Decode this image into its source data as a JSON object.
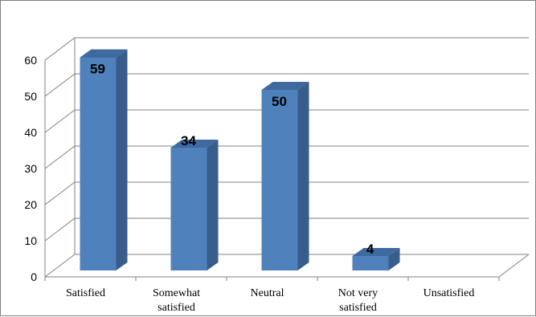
{
  "chart_data": {
    "type": "bar",
    "title": "",
    "xlabel": "",
    "ylabel": "",
    "categories": [
      [
        "Satisfied"
      ],
      [
        "Somewhat",
        "satisfied"
      ],
      [
        "Neutral"
      ],
      [
        "Not very",
        "satisfied"
      ],
      [
        "Unsatisfied"
      ]
    ],
    "values": [
      59,
      34,
      50,
      4,
      null
    ],
    "data_labels": [
      "59",
      "34",
      "50",
      "4",
      ""
    ],
    "ylim": [
      0,
      60
    ],
    "yticks": [
      0,
      10,
      20,
      30,
      40,
      50,
      60
    ],
    "grid": true,
    "three_d": true,
    "legend": "none",
    "colors": {
      "bar_front": "#4f81bd",
      "bar_side": "#385d8a",
      "bar_top": "#3f6aa0",
      "grid": "#808080"
    }
  }
}
